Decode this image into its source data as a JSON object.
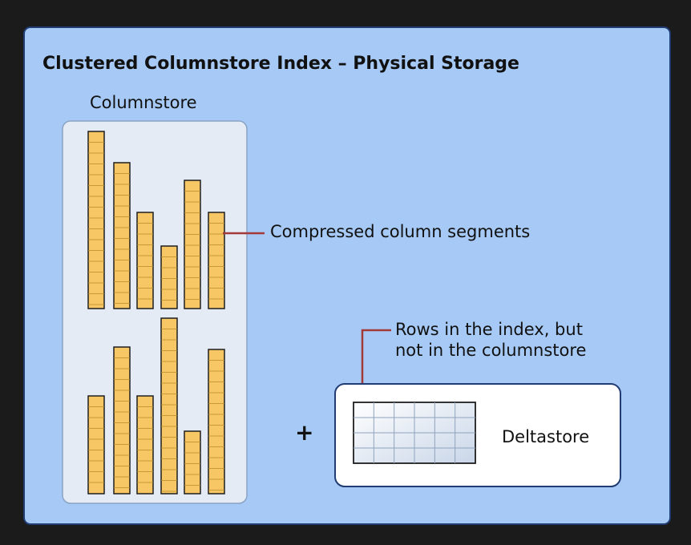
{
  "diagram": {
    "title": "Clustered Columnstore Index – Physical Storage",
    "columnstore_label": "Columnstore",
    "segments_label": "Compressed column segments",
    "rows_label_line1": "Rows in the index, but",
    "rows_label_line2": "not in the columnstore",
    "plus_sign": "+",
    "deltastore_label": "Deltastore"
  },
  "colors": {
    "background": "#1b1b1b",
    "panel_fill": "#a6c9f5",
    "panel_stroke": "#1f3c73",
    "columnstore_fill": "#e4ebf5",
    "segment_fill": "#f6c764",
    "segment_stroke": "#1e1e1e",
    "leader_line": "#a33a3a",
    "deltastore_fill": "#ffffff",
    "grid_fill": "#e6edf6"
  }
}
